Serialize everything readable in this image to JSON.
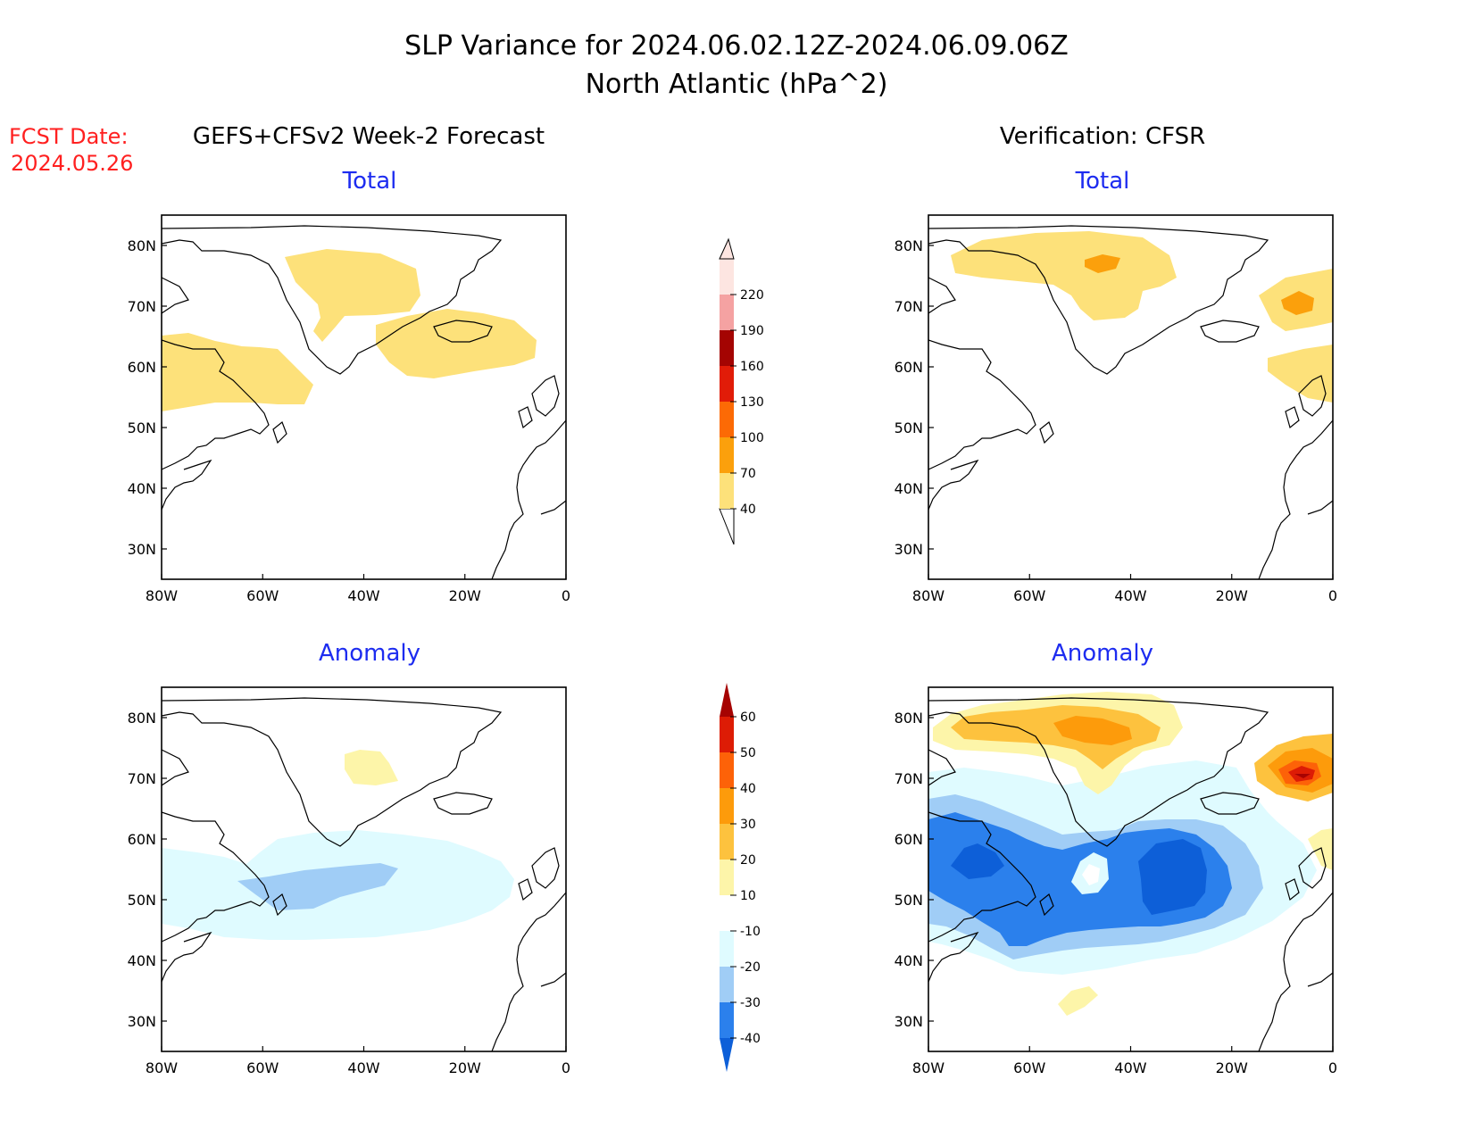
{
  "title": {
    "line1": "SLP Variance for 2024.06.02.12Z-2024.06.09.06Z",
    "line2": "North Atlantic (hPa^2)"
  },
  "fcst_date": {
    "label": "FCST Date:",
    "value": "2024.05.26"
  },
  "headers": {
    "left": "GEFS+CFSv2 Week-2 Forecast",
    "right": "Verification: CFSR"
  },
  "panels": [
    {
      "title": "Total"
    },
    {
      "title": "Total"
    },
    {
      "title": "Anomaly"
    },
    {
      "title": "Anomaly"
    }
  ],
  "axes": {
    "x_ticks": [
      "80W",
      "60W",
      "40W",
      "20W",
      "0"
    ],
    "y_ticks": [
      "80N",
      "70N",
      "60N",
      "50N",
      "40N",
      "30N"
    ],
    "lon_range": [
      -80,
      0
    ],
    "lat_range": [
      25,
      85
    ]
  },
  "colorbars": {
    "total": {
      "labels": [
        "40",
        "70",
        "100",
        "130",
        "160",
        "190",
        "220"
      ],
      "colors": [
        "#fde17a",
        "#fba00c",
        "#fc6a05",
        "#e11c08",
        "#a40402",
        "#f5a2a2",
        "#fde5e1"
      ]
    },
    "anomaly": {
      "labels": [
        "-40",
        "-30",
        "-20",
        "-10",
        "10",
        "20",
        "30",
        "40",
        "50",
        "60"
      ],
      "colors": [
        "#0d5fd8",
        "#2b80ec",
        "#a0cdf6",
        "#dffbff",
        "#ffffff",
        "#fdf5a9",
        "#fdc23e",
        "#fd9b0b",
        "#fd6208",
        "#dd1c05",
        "#a60302"
      ]
    }
  },
  "colors": {
    "yellow": "#fde17a",
    "orange": "#fba00c",
    "title_blue": "#1d2cf0",
    "fcst_red": "#ff2020"
  }
}
